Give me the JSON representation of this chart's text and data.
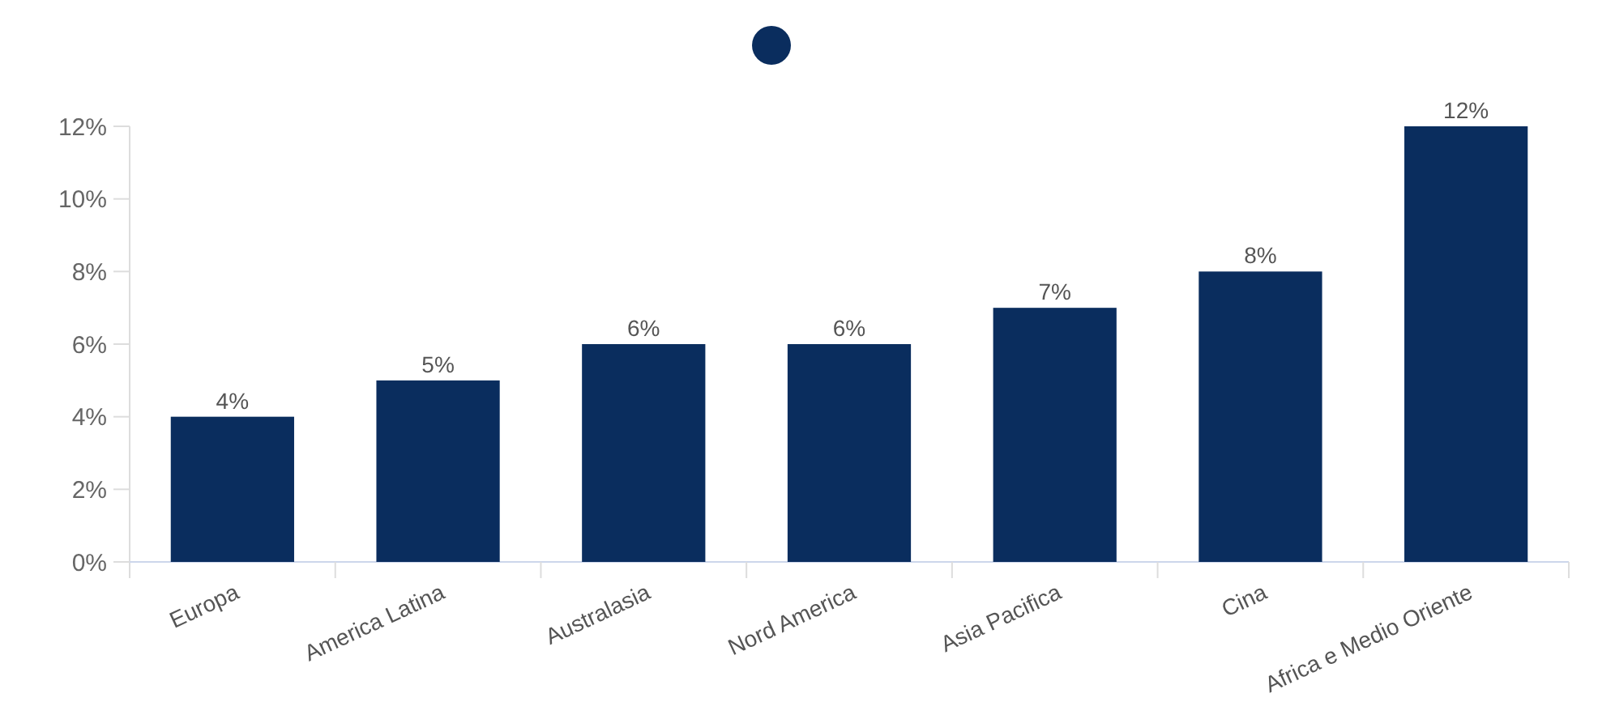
{
  "chart_data": {
    "type": "bar",
    "categories": [
      "Europa",
      "America Latina",
      "Australasia",
      "Nord America",
      "Asia Pacifica",
      "Cina",
      "Africa e Medio Oriente"
    ],
    "series": [
      {
        "color": "#0a2d5e",
        "values": [
          4,
          5,
          6,
          6,
          7,
          8,
          12
        ],
        "value_labels": [
          "4%",
          "5%",
          "6%",
          "6%",
          "7%",
          "8%",
          "12%"
        ]
      }
    ],
    "ylim": [
      0,
      12
    ],
    "yticks": [
      {
        "value": 0,
        "label": "0%"
      },
      {
        "value": 2,
        "label": "2%"
      },
      {
        "value": 4,
        "label": "4%"
      },
      {
        "value": 6,
        "label": "6%"
      },
      {
        "value": 8,
        "label": "8%"
      },
      {
        "value": 10,
        "label": "10%"
      },
      {
        "value": 12,
        "label": "12%"
      }
    ]
  }
}
